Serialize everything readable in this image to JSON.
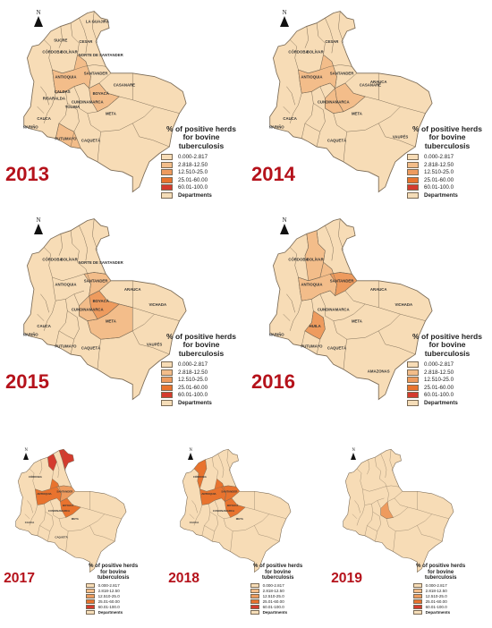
{
  "legend": {
    "title": "% of positive herds for bovine tuberculosis",
    "classes": [
      {
        "label": "0.000-2.817",
        "color": "#f7dcb6"
      },
      {
        "label": "2.818-12.50",
        "color": "#f3bd8a"
      },
      {
        "label": "12.510-25.0",
        "color": "#ee9b5e"
      },
      {
        "label": "25.01-60.00",
        "color": "#e8732e"
      },
      {
        "label": "60.01-100.0",
        "color": "#d43b2e"
      },
      {
        "label": "Departments",
        "color": "#f5ddb8"
      }
    ]
  },
  "north_label": "N",
  "colors": {
    "base": "#f7dcb6",
    "border": "#7a6a55",
    "year_text": "#b5121b"
  },
  "maps": [
    {
      "year": "2013",
      "labels": [
        "ANTIOQUIA",
        "SANTANDER",
        "BOYACÁ",
        "CUNDINAMARCA",
        "CASANARE",
        "CALDAS",
        "RISARALDA",
        "TOLIMA",
        "META",
        "CAUCA",
        "NARIÑO",
        "PUTUMAYO",
        "CAQUETÁ",
        "CÓRDOBA",
        "SUCRE",
        "BOLÍVAR",
        "CESAR",
        "NORTE DE SANTANDER",
        "LA GUAJIRA"
      ],
      "shaded": [
        "ANTIOQUIA",
        "BOYACÁ",
        "PUTUMAYO"
      ]
    },
    {
      "year": "2014",
      "labels": [
        "ANTIOQUIA",
        "SANTANDER",
        "ARAUCA",
        "CUNDINAMARCA",
        "CASANARE",
        "META",
        "CAUCA",
        "NARIÑO",
        "CAQUETÁ",
        "VAUPÉS",
        "CÓRDOBA",
        "BOLÍVAR",
        "CESAR"
      ],
      "shaded": [
        "ANTIOQUIA",
        "CUNDINAMARCA",
        "BOYACÁ"
      ]
    },
    {
      "year": "2015",
      "labels": [
        "ANTIOQUIA",
        "SANTANDER",
        "ARAUCA",
        "BOYACÁ",
        "CUNDINAMARCA",
        "META",
        "VICHADA",
        "CAUCA",
        "NARIÑO",
        "PUTUMAYO",
        "CAQUETÁ",
        "VAUPÉS",
        "CÓRDOBA",
        "BOLÍVAR",
        "NORTE DE SANTANDER"
      ],
      "shaded": [
        "BOYACÁ",
        "SANTANDER",
        "META",
        "CUNDINAMARCA"
      ]
    },
    {
      "year": "2016",
      "labels": [
        "ANTIOQUIA",
        "SANTANDER",
        "ARAUCA",
        "CUNDINAMARCA",
        "META",
        "VICHADA",
        "HUILA",
        "NARIÑO",
        "PUTUMAYO",
        "CAQUETÁ",
        "AMAZONAS",
        "CÓRDOBA",
        "BOLÍVAR"
      ],
      "shaded": [
        "ANTIOQUIA",
        "SANTANDER",
        "HUILA",
        "BOLÍVAR"
      ]
    },
    {
      "year": "2017",
      "labels": [
        "CÓRDOBA",
        "ANTIOQUIA",
        "SANTANDER",
        "BOYACÁ",
        "CUNDINAMARCA",
        "META",
        "CAUCA",
        "CAQUETÁ"
      ],
      "shaded": [
        "ANTIOQUIA",
        "BOYACÁ",
        "SANTANDER",
        "LA GUAJIRA",
        "ATLÁNTICO"
      ]
    },
    {
      "year": "2018",
      "labels": [
        "CÓRDOBA",
        "ANTIOQUIA",
        "SANTANDER",
        "BOYACÁ",
        "CUNDINAMARCA",
        "META",
        "CAUCA"
      ],
      "shaded": [
        "ANTIOQUIA",
        "CÓRDOBA",
        "SANTANDER",
        "BOYACÁ"
      ]
    },
    {
      "year": "2019",
      "labels": [],
      "shaded": [
        "CUNDINAMARCA"
      ]
    }
  ]
}
